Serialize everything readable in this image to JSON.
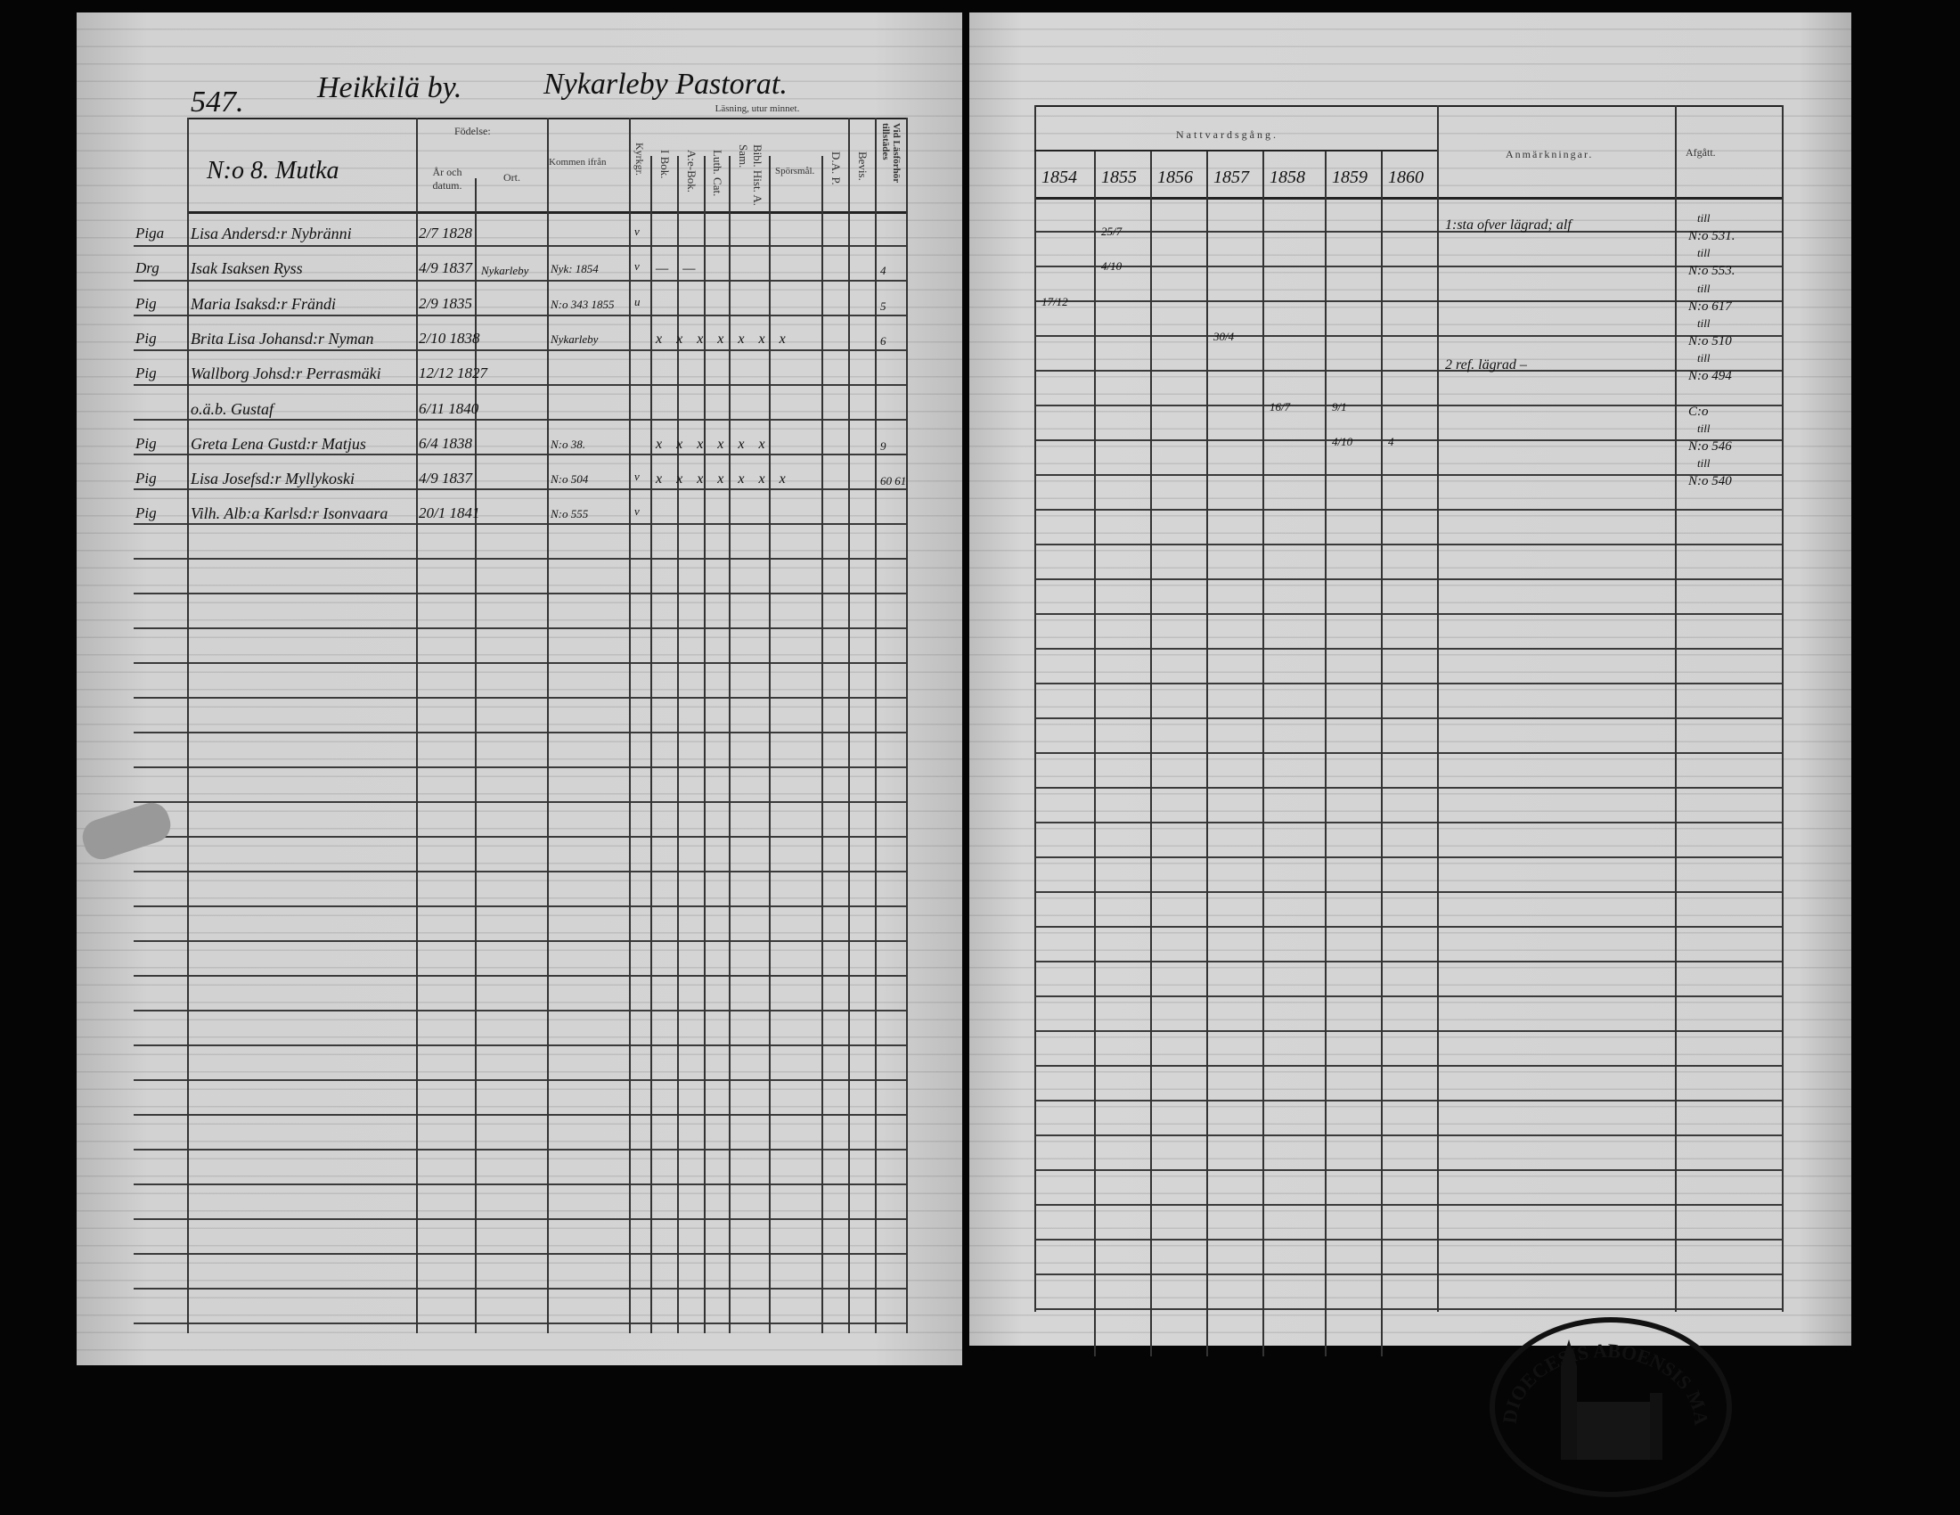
{
  "header": {
    "page_number": "547.",
    "village": "Heikkilä by.",
    "parish": "Nykarleby Pastorat.",
    "farm": "N:o 8. Mutka"
  },
  "left_columns": {
    "birth": "Födelse:",
    "year_date": "År och datum.",
    "place": "Ort.",
    "came_from": "Kommen ifrån",
    "church": "Kyrkgr.",
    "reading": "Läsning, utur minnet.",
    "i_bok": "I Bok.",
    "ae_bok": "A:e-Bok.",
    "luth_cat": "Luth. Cat.",
    "bibl_hist": "Bibl. Hist. A. Sam.",
    "questions": "Spörsmål.",
    "dap": "D.A. P.",
    "bevis": "Bevis.",
    "present": "Vid Läsförhör tillstädes"
  },
  "right_columns": {
    "communion": "Nattvardsgång.",
    "years": [
      "1854",
      "1855",
      "1856",
      "1857",
      "1858",
      "1859",
      "1860"
    ],
    "remarks": "Anmärkningar.",
    "departed": "Afgått."
  },
  "rows": [
    {
      "prefix": "Piga",
      "name": "Lisa Andersd:r Nybränni",
      "date": "2/7 1828",
      "place": "",
      "came_from": "",
      "church": "v",
      "marks": "",
      "present": "",
      "communion": [
        "",
        "25/7",
        "",
        "",
        "",
        "",
        ""
      ],
      "remarks": "1:sta ofver lägrad; alf",
      "departed_top": "till",
      "departed": "N:o 531."
    },
    {
      "prefix": "Drg",
      "name": "Isak Isaksen Ryss",
      "date": "4/9 1837",
      "place": "Nykarleby",
      "came_from": "Nyk: 1854",
      "church": "v",
      "marks": "— —",
      "present": "4",
      "communion": [
        "",
        "4/10",
        "",
        "",
        "",
        "",
        ""
      ],
      "remarks": "",
      "departed_top": "till",
      "departed": "N:o 553."
    },
    {
      "prefix": "Pig",
      "name": "Maria Isaksd:r Frändi",
      "date": "2/9 1835",
      "place": "",
      "came_from": "N:o 343 1855",
      "church": "u",
      "marks": "",
      "present": "5",
      "communion": [
        "17/12",
        "",
        "",
        "",
        "",
        "",
        ""
      ],
      "remarks": "",
      "departed_top": "till",
      "departed": "N:o 617"
    },
    {
      "prefix": "Pig",
      "name": "Brita Lisa Johansd:r Nyman",
      "date": "2/10 1838",
      "place": "",
      "came_from": "Nykarleby",
      "church": "",
      "marks": "x  x  x  x x x x",
      "present": "6",
      "communion": [
        "",
        "",
        "",
        "30/4",
        "",
        "",
        ""
      ],
      "remarks": "",
      "departed_top": "till",
      "departed": "N:o 510"
    },
    {
      "prefix": "Pig",
      "name": "Wallborg Johsd:r Perrasmäki",
      "date": "12/12 1827",
      "place": "",
      "came_from": "",
      "church": "",
      "marks": "",
      "present": "",
      "communion": [
        "",
        "",
        "",
        "",
        "",
        "",
        ""
      ],
      "remarks": "2 ref. lägrad –",
      "departed_top": "till",
      "departed": "N:o 494"
    },
    {
      "prefix": "",
      "name": "o.ä.b. Gustaf",
      "date": "6/11 1840",
      "place": "",
      "came_from": "",
      "church": "",
      "marks": "",
      "present": "",
      "communion": [
        "",
        "",
        "",
        "",
        "16/7",
        "9/1",
        ""
      ],
      "remarks": "",
      "departed_top": "",
      "departed": "C:o"
    },
    {
      "prefix": "Pig",
      "name": "Greta Lena Gustd:r Matjus",
      "date": "6/4 1838",
      "place": "",
      "came_from": "N:o 38.",
      "church": "",
      "marks": "x  x  x  x x x",
      "present": "9",
      "communion": [
        "",
        "",
        "",
        "",
        "",
        "4/10",
        "4"
      ],
      "remarks": "",
      "departed_top": "till",
      "departed": "N:o 546"
    },
    {
      "prefix": "Pig",
      "name": "Lisa Josefsd:r Myllykoski",
      "date": "4/9 1837",
      "place": "",
      "came_from": "N:o 504",
      "church": "v",
      "marks": "x  x  x x x x x",
      "present": "60 61",
      "communion": [
        "",
        "",
        "",
        "",
        "",
        "",
        ""
      ],
      "remarks": "",
      "departed_top": "till",
      "departed": "N:o 540"
    },
    {
      "prefix": "Pig",
      "name": "Vilh. Alb:a Karlsd:r Isonvaara",
      "date": "20/1 1841",
      "place": "",
      "came_from": "N:o 555",
      "church": "v",
      "marks": "",
      "present": "",
      "communion": [
        "",
        "",
        "",
        "",
        "",
        "",
        ""
      ],
      "remarks": "",
      "departed_top": "",
      "departed": ""
    }
  ],
  "stamp": {
    "text": "DIOECESIS ABOENSIS MAGNI FINL."
  }
}
